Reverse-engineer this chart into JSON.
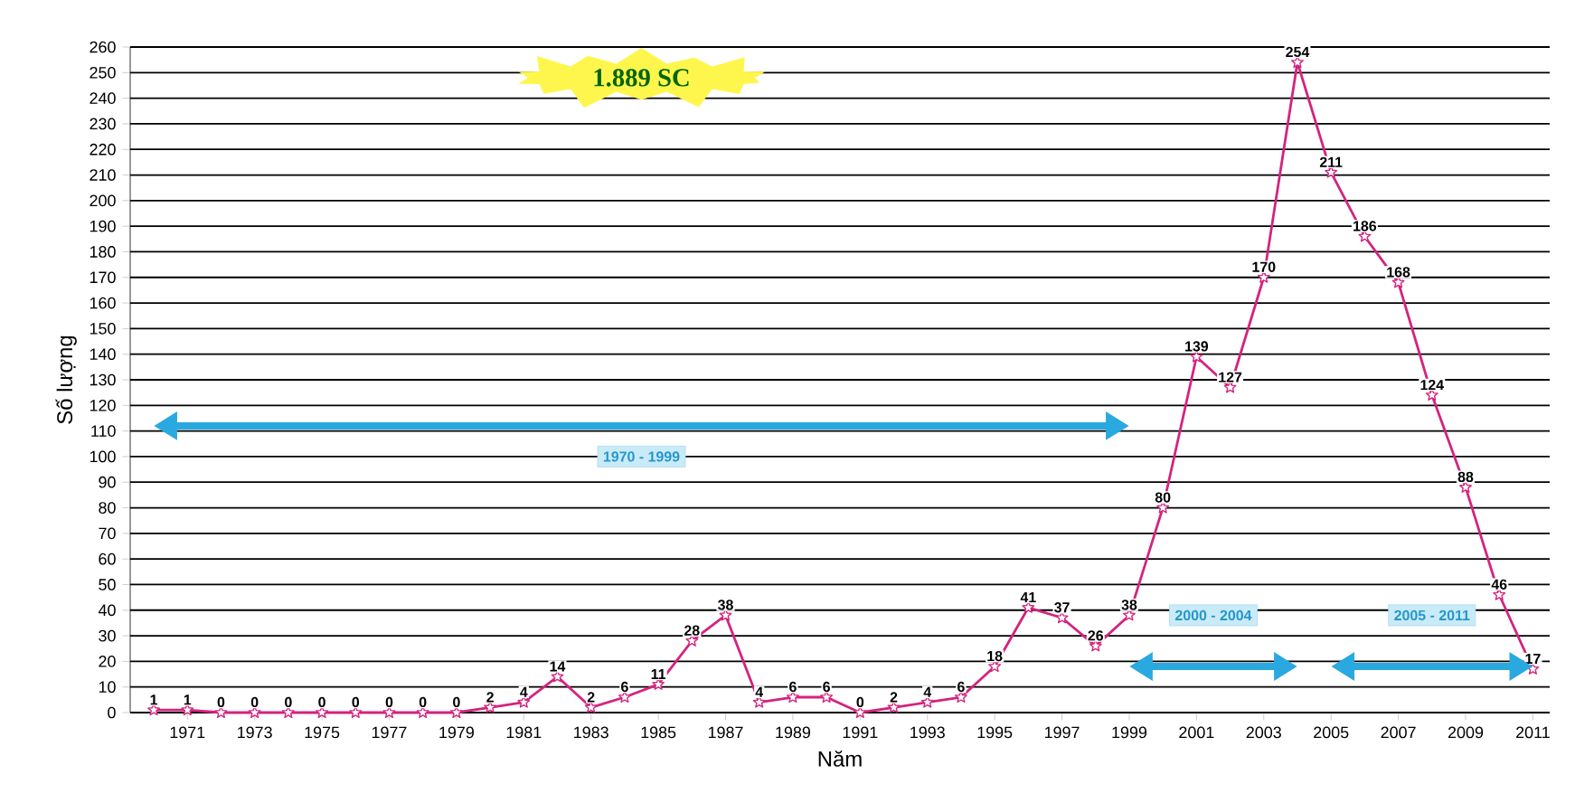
{
  "chart_data": {
    "type": "line",
    "xlabel": "Năm",
    "ylabel": "Số lượng",
    "x": [
      1970,
      1971,
      1972,
      1973,
      1974,
      1975,
      1976,
      1977,
      1978,
      1979,
      1980,
      1981,
      1982,
      1983,
      1984,
      1985,
      1986,
      1987,
      1988,
      1989,
      1990,
      1991,
      1992,
      1993,
      1994,
      1995,
      1996,
      1997,
      1998,
      1999,
      2000,
      2001,
      2002,
      2003,
      2004,
      2005,
      2006,
      2007,
      2008,
      2009,
      2010,
      2011
    ],
    "series": [
      {
        "color": "#d4237f",
        "values": [
          1,
          1,
          0,
          0,
          0,
          0,
          0,
          0,
          0,
          0,
          2,
          4,
          14,
          2,
          6,
          11,
          28,
          38,
          4,
          6,
          6,
          0,
          2,
          4,
          6,
          18,
          41,
          37,
          26,
          38,
          80,
          139,
          127,
          170,
          254,
          211,
          186,
          168,
          124,
          88,
          46,
          17
        ]
      }
    ],
    "data_labels": true,
    "marker": "star",
    "line_style": "solid",
    "grid": "y",
    "xlim": [
      1969.3,
      2011.5
    ],
    "ylim": [
      0,
      260
    ],
    "xticks": [
      1971,
      1973,
      1975,
      1977,
      1979,
      1981,
      1983,
      1985,
      1987,
      1989,
      1991,
      1993,
      1995,
      1997,
      1999,
      2001,
      2003,
      2005,
      2007,
      2009,
      2011
    ],
    "yticks": [
      0,
      10,
      20,
      30,
      40,
      50,
      60,
      70,
      80,
      90,
      100,
      110,
      120,
      130,
      140,
      150,
      160,
      170,
      180,
      190,
      200,
      210,
      220,
      230,
      240,
      250,
      260
    ],
    "annotations": [
      "1.889 SC",
      "1970 - 1999",
      "2000 - 2004",
      "2005 - 2011"
    ]
  }
}
